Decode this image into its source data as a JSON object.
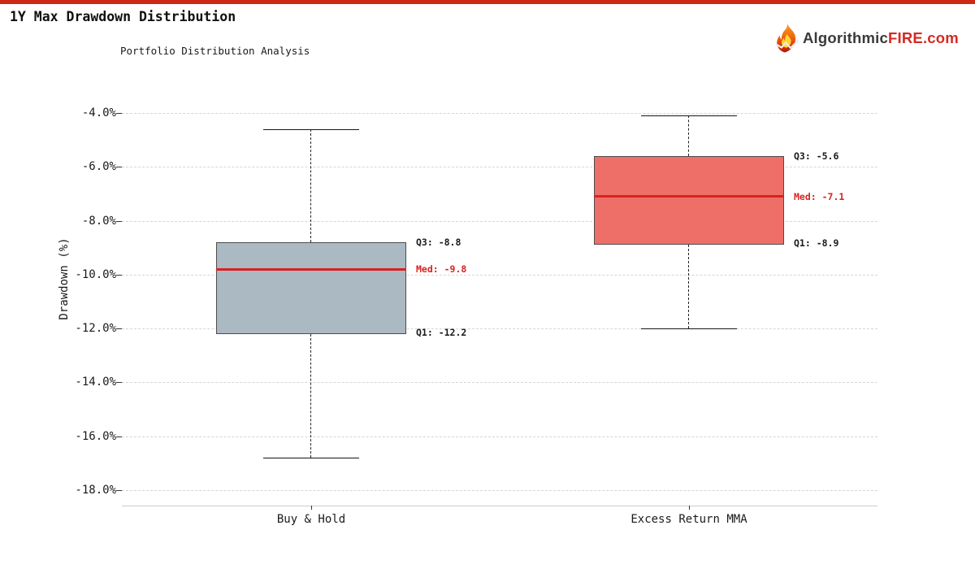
{
  "header": {
    "title": "1Y Max Drawdown Distribution",
    "accent_bar_color": "#cc2817"
  },
  "logo": {
    "icon": "flame-icon",
    "part1": "Algorithmic",
    "part2": "FIRE",
    "part3": ".com",
    "part1_color": "#3a3a3a",
    "accent_color": "#d42a23"
  },
  "chart_data": {
    "type": "boxplot",
    "title": "Portfolio Distribution Analysis",
    "ylabel": "Drawdown (%)",
    "ylim": [
      -18.6,
      -3.7
    ],
    "ytick_values": [
      -4,
      -6,
      -8,
      -10,
      -12,
      -14,
      -16,
      -18
    ],
    "yticks": [
      "-4.0%",
      "-6.0%",
      "-8.0%",
      "-10.0%",
      "-12.0%",
      "-14.0%",
      "-16.0%",
      "-18.0%"
    ],
    "grid": true,
    "legend": "none",
    "median_color": "#d92121",
    "categories": [
      "Buy & Hold",
      "Excess Return MMA"
    ],
    "series": [
      {
        "name": "Buy & Hold",
        "whisker_high": -4.6,
        "q3": -8.8,
        "median": -9.8,
        "q1": -12.2,
        "whisker_low": -16.8,
        "box_color": "#aab9c2",
        "labels": {
          "q3": "Q3: -8.8",
          "med": "Med: -9.8",
          "q1": "Q1: -12.2"
        }
      },
      {
        "name": "Excess Return MMA",
        "whisker_high": -4.1,
        "q3": -5.6,
        "median": -7.1,
        "q1": -8.9,
        "whisker_low": -12.0,
        "box_color": "#ee6f68",
        "labels": {
          "q3": "Q3: -5.6",
          "med": "Med: -7.1",
          "q1": "Q1: -8.9"
        }
      }
    ]
  }
}
